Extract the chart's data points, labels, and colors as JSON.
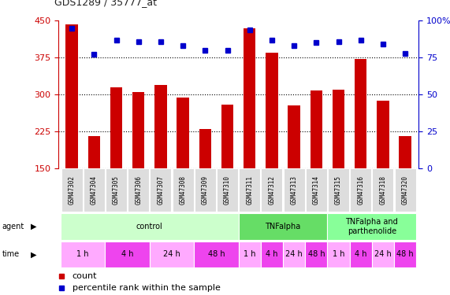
{
  "title": "GDS1289 / 35777_at",
  "samples": [
    "GSM47302",
    "GSM47304",
    "GSM47305",
    "GSM47306",
    "GSM47307",
    "GSM47308",
    "GSM47309",
    "GSM47310",
    "GSM47311",
    "GSM47312",
    "GSM47313",
    "GSM47314",
    "GSM47315",
    "GSM47316",
    "GSM47318",
    "GSM47320"
  ],
  "counts": [
    443,
    215,
    315,
    305,
    320,
    293,
    230,
    280,
    435,
    385,
    278,
    308,
    310,
    372,
    288,
    215
  ],
  "percentiles": [
    95,
    77,
    87,
    86,
    86,
    83,
    80,
    80,
    94,
    87,
    83,
    85,
    86,
    87,
    84,
    78
  ],
  "ylim_left": [
    150,
    450
  ],
  "ylim_right": [
    0,
    100
  ],
  "yticks_left": [
    150,
    225,
    300,
    375,
    450
  ],
  "yticks_right": [
    0,
    25,
    50,
    75,
    100
  ],
  "agent_groups": [
    {
      "label": "control",
      "start": 0,
      "end": 8,
      "color": "#ccffcc"
    },
    {
      "label": "TNFalpha",
      "start": 8,
      "end": 12,
      "color": "#66dd66"
    },
    {
      "label": "TNFalpha and\nparthenolide",
      "start": 12,
      "end": 16,
      "color": "#88ff99"
    }
  ],
  "time_groups": [
    {
      "label": "1 h",
      "start": 0,
      "end": 2,
      "color": "#ffaaff"
    },
    {
      "label": "4 h",
      "start": 2,
      "end": 4,
      "color": "#ee44ee"
    },
    {
      "label": "24 h",
      "start": 4,
      "end": 6,
      "color": "#ffaaff"
    },
    {
      "label": "48 h",
      "start": 6,
      "end": 8,
      "color": "#ee44ee"
    },
    {
      "label": "1 h",
      "start": 8,
      "end": 9,
      "color": "#ffaaff"
    },
    {
      "label": "4 h",
      "start": 9,
      "end": 10,
      "color": "#ee44ee"
    },
    {
      "label": "24 h",
      "start": 10,
      "end": 11,
      "color": "#ffaaff"
    },
    {
      "label": "48 h",
      "start": 11,
      "end": 12,
      "color": "#ee44ee"
    },
    {
      "label": "1 h",
      "start": 12,
      "end": 13,
      "color": "#ffaaff"
    },
    {
      "label": "4 h",
      "start": 13,
      "end": 14,
      "color": "#ee44ee"
    },
    {
      "label": "24 h",
      "start": 14,
      "end": 15,
      "color": "#ffaaff"
    },
    {
      "label": "48 h",
      "start": 15,
      "end": 16,
      "color": "#ee44ee"
    }
  ],
  "bar_color": "#cc0000",
  "dot_color": "#0000cc",
  "bg_color": "#ffffff",
  "left_tick_color": "#cc0000",
  "right_tick_color": "#0000cc"
}
